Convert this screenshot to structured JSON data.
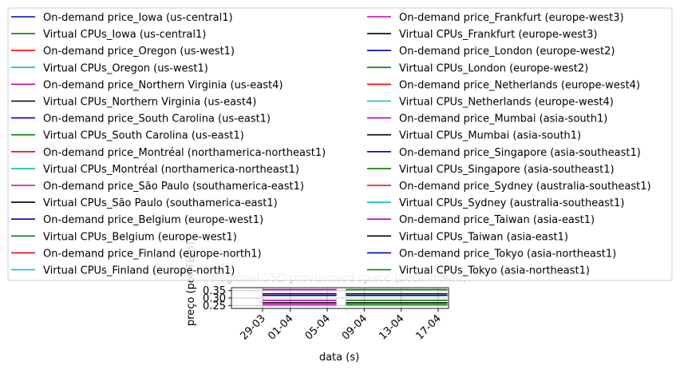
{
  "chart_data": {
    "type": "line",
    "title": "Regional SSD provisioned space (beta Promo)",
    "xlabel": "data (s)",
    "ylabel": "preço (por TB/h)",
    "x_tick_labels": [
      "29-03",
      "01-04",
      "05-04",
      "09-04",
      "13-04",
      "17-04"
    ],
    "y_tick_labels": [
      "0.25",
      "0.30",
      "0.35"
    ],
    "ylim": [
      0.23,
      0.37
    ],
    "grid": true,
    "legend_position": "top",
    "legend_columns": 2,
    "series_colors": [
      "#0000bf",
      "#008000",
      "#ff0000",
      "#00bfbf",
      "#bf00bf",
      "#000000"
    ],
    "series": [
      {
        "name": "On-demand price_Iowa (us-central1)",
        "color": "#0000bf"
      },
      {
        "name": "Virtual CPUs_Iowa (us-central1)",
        "color": "#008000"
      },
      {
        "name": "On-demand price_Oregon (us-west1)",
        "color": "#ff0000"
      },
      {
        "name": "Virtual CPUs_Oregon (us-west1)",
        "color": "#00bfbf"
      },
      {
        "name": "On-demand price_Northern Virginia (us-east4)",
        "color": "#bf00bf"
      },
      {
        "name": "Virtual CPUs_Northern Virginia (us-east4)",
        "color": "#000000"
      },
      {
        "name": "On-demand price_South Carolina (us-east1)",
        "color": "#0000bf"
      },
      {
        "name": "Virtual CPUs_South Carolina (us-east1)",
        "color": "#008000"
      },
      {
        "name": "On-demand price_Montréal (northamerica-northeast1)",
        "color": "#ff0000"
      },
      {
        "name": "Virtual CPUs_Montréal (northamerica-northeast1)",
        "color": "#00bfbf"
      },
      {
        "name": "On-demand price_São Paulo (southamerica-east1)",
        "color": "#bf00bf"
      },
      {
        "name": "Virtual CPUs_São Paulo (southamerica-east1)",
        "color": "#000000"
      },
      {
        "name": "On-demand price_Belgium (europe-west1)",
        "color": "#0000bf"
      },
      {
        "name": "Virtual CPUs_Belgium (europe-west1)",
        "color": "#008000"
      },
      {
        "name": "On-demand price_Finland (europe-north1)",
        "color": "#ff0000"
      },
      {
        "name": "Virtual CPUs_Finland (europe-north1)",
        "color": "#00bfbf"
      },
      {
        "name": "On-demand price_Frankfurt (europe-west3)",
        "color": "#bf00bf"
      },
      {
        "name": "Virtual CPUs_Frankfurt (europe-west3)",
        "color": "#000000"
      },
      {
        "name": "On-demand price_London (europe-west2)",
        "color": "#0000bf"
      },
      {
        "name": "Virtual CPUs_London (europe-west2)",
        "color": "#008000"
      },
      {
        "name": "On-demand price_Netherlands (europe-west4)",
        "color": "#ff0000"
      },
      {
        "name": "Virtual CPUs_Netherlands (europe-west4)",
        "color": "#00bfbf"
      },
      {
        "name": "On-demand price_Mumbai (asia-south1)",
        "color": "#bf00bf"
      },
      {
        "name": "Virtual CPUs_Mumbai (asia-south1)",
        "color": "#000000"
      },
      {
        "name": "On-demand price_Singapore (asia-southeast1)",
        "color": "#0000bf"
      },
      {
        "name": "Virtual CPUs_Singapore (asia-southeast1)",
        "color": "#008000"
      },
      {
        "name": "On-demand price_Sydney (australia-southeast1)",
        "color": "#ff0000"
      },
      {
        "name": "Virtual CPUs_Sydney (australia-southeast1)",
        "color": "#00bfbf"
      },
      {
        "name": "On-demand price_Taiwan (asia-east1)",
        "color": "#bf00bf"
      },
      {
        "name": "Virtual CPUs_Taiwan (asia-east1)",
        "color": "#000000"
      },
      {
        "name": "On-demand price_Tokyo (asia-northeast1)",
        "color": "#0000bf"
      },
      {
        "name": "Virtual CPUs_Tokyo (asia-northeast1)",
        "color": "#008000"
      }
    ],
    "visible_lines": [
      {
        "color": "#bf00bf",
        "x_start": "29-03",
        "x_end": "06-04",
        "y": 0.357
      },
      {
        "color": "#000000",
        "x_start": "29-03",
        "x_end": "06-04",
        "y": 0.329
      },
      {
        "color": "#0000bf",
        "x_start": "29-03",
        "x_end": "06-04",
        "y": 0.318
      },
      {
        "color": "#bf00bf",
        "x_start": "29-03",
        "x_end": "06-04",
        "y": 0.285
      },
      {
        "color": "#000000",
        "x_start": "29-03",
        "x_end": "06-04",
        "y": 0.268
      },
      {
        "color": "#bf00bf",
        "x_start": "29-03",
        "x_end": "06-04",
        "y": 0.255
      },
      {
        "color": "#008000",
        "x_start": "07-04",
        "x_end": "18-04",
        "y": 0.357
      },
      {
        "color": "#000000",
        "x_start": "07-04",
        "x_end": "18-04",
        "y": 0.329
      },
      {
        "color": "#0000bf",
        "x_start": "07-04",
        "x_end": "18-04",
        "y": 0.318
      },
      {
        "color": "#008000",
        "x_start": "07-04",
        "x_end": "18-04",
        "y": 0.285
      },
      {
        "color": "#000000",
        "x_start": "07-04",
        "x_end": "18-04",
        "y": 0.268
      },
      {
        "color": "#008000",
        "x_start": "07-04",
        "x_end": "18-04",
        "y": 0.255
      }
    ]
  }
}
